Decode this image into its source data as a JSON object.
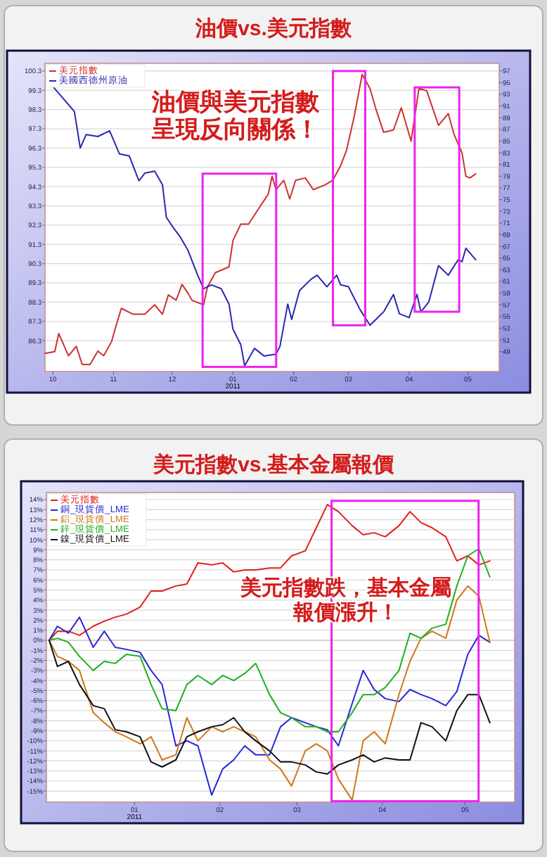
{
  "chart_data": [
    {
      "type": "line",
      "title": "油價vs.美元指數",
      "annotations": [
        "油價與美元指數",
        "呈現反向關係！"
      ],
      "xlabel": "2011",
      "grid": "y",
      "legend": "top left",
      "line_style": "solid",
      "xlim": [
        "2010-09-27",
        "2011-05-17"
      ],
      "xticks": [
        {
          "value": "2010-10-01",
          "label": "10"
        },
        {
          "value": "2010-11-01",
          "label": "11"
        },
        {
          "value": "2010-12-01",
          "label": "12"
        },
        {
          "value": "2011-01-01",
          "label": "01"
        },
        {
          "value": "2011-02-01",
          "label": "02"
        },
        {
          "value": "2011-03-01",
          "label": "03"
        },
        {
          "value": "2011-04-01",
          "label": "04"
        },
        {
          "value": "2011-05-01",
          "label": "05"
        }
      ],
      "ylim": [
        84.7,
        100.7
      ],
      "yticks": [
        100.3,
        99.3,
        98.3,
        97.3,
        96.3,
        95.3,
        94.3,
        93.3,
        92.3,
        91.3,
        90.3,
        89.3,
        88.3,
        87.3,
        86.3
      ],
      "y2lim": [
        45.6,
        98.3
      ],
      "y2ticks": [
        97,
        95,
        93,
        91,
        89,
        87,
        85,
        83,
        81,
        79,
        77,
        75,
        73,
        71,
        69,
        67,
        65,
        63,
        61,
        59,
        57,
        55,
        53,
        51,
        49
      ],
      "series": [
        {
          "name": "美元指數",
          "color": "#d03030",
          "axis": "y2",
          "x": [
            "2010-09-27",
            "2010-10-02",
            "2010-10-04",
            "2010-10-09",
            "2010-10-13",
            "2010-10-16",
            "2010-10-20",
            "2010-10-24",
            "2010-10-27",
            "2010-10-31",
            "2010-11-02",
            "2010-11-05",
            "2010-11-11",
            "2010-11-17",
            "2010-11-22",
            "2010-11-26",
            "2010-11-29",
            "2010-12-03",
            "2010-12-06",
            "2010-12-09",
            "2010-12-11",
            "2010-12-17",
            "2010-12-19",
            "2010-12-23",
            "2010-12-30",
            "2011-01-01",
            "2011-01-05",
            "2011-01-09",
            "2011-01-15",
            "2011-01-19",
            "2011-01-21",
            "2011-01-23",
            "2011-01-27",
            "2011-01-30",
            "2011-02-02",
            "2011-02-07",
            "2011-02-11",
            "2011-02-17",
            "2011-02-21",
            "2011-02-25",
            "2011-02-28",
            "2011-03-04",
            "2011-03-08",
            "2011-03-12",
            "2011-03-15",
            "2011-03-19",
            "2011-03-24",
            "2011-03-28",
            "2011-04-02",
            "2011-04-06",
            "2011-04-10",
            "2011-04-16",
            "2011-04-21",
            "2011-04-24",
            "2011-04-28",
            "2011-04-30",
            "2011-05-02",
            "2011-05-05"
          ],
          "values": [
            48.7,
            49.0,
            52.1,
            48.3,
            49.9,
            46.8,
            46.8,
            49.1,
            48.3,
            50.7,
            53.1,
            56.4,
            55.4,
            55.4,
            57.0,
            55.4,
            58.7,
            57.8,
            60.5,
            59.0,
            57.8,
            57.0,
            60.1,
            62.5,
            63.5,
            68.0,
            70.8,
            70.8,
            73.9,
            75.9,
            79.0,
            76.7,
            78.3,
            75.1,
            78.3,
            78.7,
            76.7,
            77.5,
            78.3,
            80.8,
            83.4,
            89.3,
            96.4,
            94.0,
            90.5,
            86.5,
            86.9,
            90.7,
            85.0,
            94.0,
            93.6,
            87.7,
            89.7,
            86.1,
            83.0,
            79.0,
            78.7,
            79.4
          ]
        },
        {
          "name": "美國西德州原油",
          "color": "#2828b0",
          "x": [
            "2010-10-01",
            "2010-10-12",
            "2010-10-15",
            "2010-10-18",
            "2010-10-24",
            "2010-10-30",
            "2010-11-04",
            "2010-11-09",
            "2010-11-14",
            "2010-11-17",
            "2010-11-22",
            "2010-11-26",
            "2010-11-28",
            "2010-12-02",
            "2010-12-05",
            "2010-12-09",
            "2010-12-14",
            "2010-12-17",
            "2010-12-21",
            "2010-12-26",
            "2010-12-30",
            "2011-01-01",
            "2011-01-05",
            "2011-01-07",
            "2011-01-12",
            "2011-01-17",
            "2011-01-23",
            "2011-01-25",
            "2011-01-29",
            "2011-01-31",
            "2011-02-04",
            "2011-02-10",
            "2011-02-13",
            "2011-02-18",
            "2011-02-23",
            "2011-02-25",
            "2011-03-01",
            "2011-03-07",
            "2011-03-12",
            "2011-03-14",
            "2011-03-19",
            "2011-03-24",
            "2011-03-27",
            "2011-04-01",
            "2011-04-05",
            "2011-04-07",
            "2011-04-11",
            "2011-04-16",
            "2011-04-21",
            "2011-04-26",
            "2011-04-28",
            "2011-04-30",
            "2011-05-05"
          ],
          "values": [
            99.5,
            98.2,
            96.3,
            97.0,
            96.9,
            97.2,
            96.0,
            95.9,
            94.6,
            95.0,
            95.1,
            94.4,
            92.7,
            92.1,
            91.7,
            91.0,
            89.7,
            89.0,
            89.2,
            89.0,
            88.2,
            86.9,
            86.1,
            85.0,
            85.9,
            85.5,
            85.6,
            86.0,
            88.2,
            87.4,
            88.9,
            89.5,
            89.7,
            89.1,
            89.7,
            89.2,
            89.1,
            87.9,
            87.1,
            87.3,
            87.8,
            88.7,
            87.7,
            87.5,
            88.7,
            87.8,
            88.3,
            90.2,
            89.7,
            90.5,
            90.4,
            91.1,
            90.5
          ]
        }
      ]
    },
    {
      "type": "line",
      "title": "美元指數vs.基本金屬報價",
      "annotations": [
        "美元指數跌，基本金屬",
        "報價漲升！"
      ],
      "xlabel": "2011",
      "grid": "y",
      "legend": "top left",
      "line_style": "solid",
      "xlim": [
        "2010-11-30",
        "2011-05-19"
      ],
      "xticks": [
        {
          "value": "2011-01-01",
          "label": "01"
        },
        {
          "value": "2011-02-01",
          "label": "02"
        },
        {
          "value": "2011-03-01",
          "label": "03"
        },
        {
          "value": "2011-04-01",
          "label": "04"
        },
        {
          "value": "2011-05-01",
          "label": "05"
        }
      ],
      "ylim": [
        -16.1,
        14.7
      ],
      "yticks": [
        {
          "value": 14,
          "label": "14%"
        },
        {
          "value": 13,
          "label": "13%"
        },
        {
          "value": 12,
          "label": "12%"
        },
        {
          "value": 11,
          "label": "11%"
        },
        {
          "value": 10,
          "label": "10%"
        },
        {
          "value": 9,
          "label": "9%"
        },
        {
          "value": 8,
          "label": "8%"
        },
        {
          "value": 7,
          "label": "7%"
        },
        {
          "value": 6,
          "label": "6%"
        },
        {
          "value": 5,
          "label": "5%"
        },
        {
          "value": 4,
          "label": "4%"
        },
        {
          "value": 3,
          "label": "3%"
        },
        {
          "value": 2,
          "label": "2%"
        },
        {
          "value": 1,
          "label": "1%"
        },
        {
          "value": 0,
          "label": "0%"
        },
        {
          "value": -1,
          "label": "-1%"
        },
        {
          "value": -2,
          "label": "-2%"
        },
        {
          "value": -3,
          "label": "-3%"
        },
        {
          "value": -4,
          "label": "-4%"
        },
        {
          "value": -5,
          "label": "-5%"
        },
        {
          "value": -6,
          "label": "-6%"
        },
        {
          "value": -7,
          "label": "-7%"
        },
        {
          "value": -8,
          "label": "-8%"
        },
        {
          "value": -9,
          "label": "-9%"
        },
        {
          "value": -10,
          "label": "-10%"
        },
        {
          "value": -11,
          "label": "-11%"
        },
        {
          "value": -12,
          "label": "-12%"
        },
        {
          "value": -13,
          "label": "-13%"
        },
        {
          "value": -14,
          "label": "-14%"
        },
        {
          "value": -15,
          "label": "-15%"
        }
      ],
      "x": [
        "2010-12-01",
        "2010-12-04",
        "2010-12-08",
        "2010-12-12",
        "2010-12-17",
        "2010-12-21",
        "2010-12-25",
        "2010-12-29",
        "2011-01-03",
        "2011-01-07",
        "2011-01-11",
        "2011-01-16",
        "2011-01-20",
        "2011-01-24",
        "2011-01-29",
        "2011-02-02",
        "2011-02-06",
        "2011-02-10",
        "2011-02-14",
        "2011-02-19",
        "2011-02-23",
        "2011-02-27",
        "2011-03-04",
        "2011-03-08",
        "2011-03-12",
        "2011-03-16",
        "2011-03-21",
        "2011-03-25",
        "2011-03-29",
        "2011-04-02",
        "2011-04-07",
        "2011-04-11",
        "2011-04-15",
        "2011-04-19",
        "2011-04-24",
        "2011-04-28",
        "2011-05-02",
        "2011-05-06",
        "2011-05-10"
      ],
      "series": [
        {
          "name": "美元指數",
          "color": "#e02020",
          "values": [
            0.0,
            0.9,
            0.9,
            0.5,
            1.4,
            1.9,
            2.3,
            2.6,
            3.3,
            4.9,
            4.9,
            5.4,
            5.6,
            7.7,
            7.5,
            7.7,
            6.8,
            7.0,
            7.0,
            7.2,
            7.2,
            8.4,
            8.9,
            11.2,
            13.5,
            12.8,
            11.4,
            10.5,
            10.7,
            10.3,
            11.4,
            12.8,
            11.7,
            11.2,
            10.3,
            7.9,
            8.4,
            7.5,
            7.9
          ]
        },
        {
          "name": "銅_現貨價_LME",
          "color": "#2828d8",
          "values": [
            0.0,
            1.4,
            0.7,
            2.3,
            -0.7,
            0.9,
            -0.7,
            -0.9,
            -1.2,
            -3.0,
            -4.4,
            -10.5,
            -10.0,
            -10.5,
            -15.4,
            -12.8,
            -11.9,
            -10.5,
            -11.4,
            -11.4,
            -8.6,
            -7.7,
            -8.2,
            -8.6,
            -8.9,
            -10.5,
            -6.3,
            -3.0,
            -4.9,
            -5.8,
            -6.1,
            -4.9,
            -5.4,
            -5.8,
            -6.5,
            -5.1,
            -1.4,
            0.5,
            -0.2
          ]
        },
        {
          "name": "鋁_現貨價_LME",
          "color": "#d07818",
          "values": [
            0.0,
            -1.6,
            -2.1,
            -3.0,
            -7.2,
            -8.2,
            -9.1,
            -9.6,
            -10.3,
            -9.6,
            -11.9,
            -11.4,
            -7.7,
            -10.0,
            -8.6,
            -9.1,
            -8.6,
            -9.1,
            -9.6,
            -11.9,
            -12.8,
            -14.5,
            -11.0,
            -10.3,
            -11.0,
            -13.8,
            -15.9,
            -10.0,
            -9.1,
            -10.3,
            -5.4,
            -2.1,
            0.2,
            0.9,
            0.2,
            4.0,
            5.4,
            4.4,
            -0.2
          ]
        },
        {
          "name": "鋅_現貨價_LME",
          "color": "#20b020",
          "values": [
            0.0,
            0.2,
            -0.2,
            -1.6,
            -3.0,
            -2.1,
            -2.3,
            -1.4,
            -1.6,
            -4.4,
            -6.8,
            -7.0,
            -4.4,
            -3.5,
            -4.4,
            -3.5,
            -4.0,
            -3.3,
            -2.3,
            -5.4,
            -7.2,
            -7.7,
            -8.6,
            -8.6,
            -9.1,
            -9.1,
            -7.2,
            -5.4,
            -5.4,
            -4.7,
            -3.0,
            0.7,
            0.2,
            1.2,
            1.6,
            5.4,
            8.4,
            9.1,
            6.3
          ]
        },
        {
          "name": "鎳_現貨價_LME",
          "color": "#101018",
          "values": [
            0.0,
            -2.6,
            -2.1,
            -4.4,
            -6.5,
            -6.8,
            -8.9,
            -9.1,
            -9.6,
            -12.1,
            -12.6,
            -11.9,
            -9.6,
            -9.1,
            -8.6,
            -8.4,
            -7.7,
            -9.1,
            -10.0,
            -11.0,
            -12.1,
            -12.1,
            -12.4,
            -13.1,
            -13.3,
            -12.4,
            -11.9,
            -11.4,
            -12.1,
            -11.7,
            -11.9,
            -11.9,
            -8.2,
            -8.6,
            -10.0,
            -7.0,
            -5.4,
            -5.4,
            -8.2
          ]
        }
      ]
    }
  ]
}
